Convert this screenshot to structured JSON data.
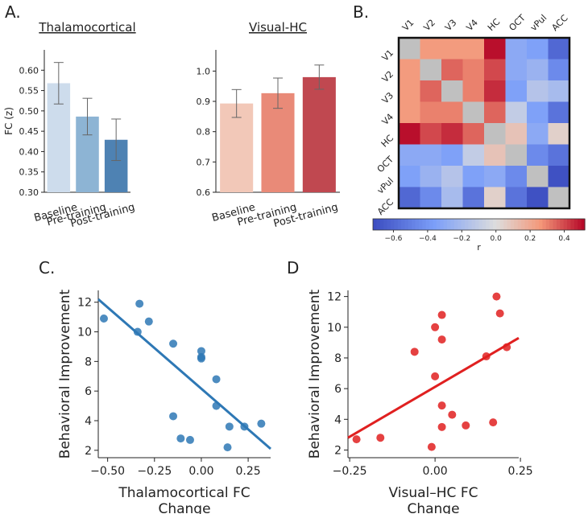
{
  "panel_labels": {
    "a": "A.",
    "b": "B.",
    "c": "C.",
    "d": "D"
  },
  "colorbar": {
    "label": "r",
    "ticks": [
      "−0.6",
      "−0.4",
      "−0.2",
      "0.0",
      "0.2",
      "0.4"
    ],
    "tick_values": [
      -0.6,
      -0.4,
      -0.2,
      0.0,
      0.2,
      0.4
    ],
    "vmin": -0.72,
    "vmax": 0.52
  },
  "chart_data": [
    {
      "id": "A1",
      "type": "bar",
      "title": "Thalamocortical",
      "ylabel": "FC (z)",
      "ylim": [
        0.3,
        0.65
      ],
      "yticks": [
        "0.30",
        "0.35",
        "0.40",
        "0.45",
        "0.50",
        "0.55",
        "0.60"
      ],
      "ytick_values": [
        0.3,
        0.35,
        0.4,
        0.45,
        0.5,
        0.55,
        0.6
      ],
      "categories": [
        "Baseline",
        "Pre-training",
        "Post-training"
      ],
      "values": [
        0.568,
        0.486,
        0.429
      ],
      "error": [
        0.051,
        0.045,
        0.051
      ],
      "colors": [
        "#cddcec",
        "#8db4d4",
        "#4e82b3"
      ]
    },
    {
      "id": "A2",
      "type": "bar",
      "title": "Visual-HC",
      "ylabel": "",
      "ylim": [
        0.6,
        1.07
      ],
      "yticks": [
        "0.6",
        "0.7",
        "0.8",
        "0.9",
        "1.0"
      ],
      "ytick_values": [
        0.6,
        0.7,
        0.8,
        0.9,
        1.0
      ],
      "categories": [
        "Baseline",
        "Pre-training",
        "Post-training"
      ],
      "values": [
        0.893,
        0.927,
        0.98
      ],
      "error": [
        0.046,
        0.05,
        0.04
      ],
      "colors": [
        "#f2c8b8",
        "#e98a78",
        "#c04850"
      ]
    },
    {
      "id": "B",
      "type": "heatmap",
      "labels": [
        "V1",
        "V2",
        "V3",
        "V4",
        "HC",
        "OCT",
        "vPul",
        "ACC"
      ],
      "values": [
        [
          0.0,
          0.25,
          0.25,
          0.25,
          0.5,
          -0.3,
          -0.35,
          -0.6
        ],
        [
          0.25,
          0.0,
          0.35,
          0.3,
          0.4,
          -0.3,
          -0.25,
          -0.45
        ],
        [
          0.25,
          0.35,
          0.0,
          0.3,
          0.45,
          -0.35,
          -0.15,
          -0.2
        ],
        [
          0.25,
          0.3,
          0.3,
          0.0,
          0.35,
          -0.1,
          -0.35,
          -0.55
        ],
        [
          0.5,
          0.4,
          0.45,
          0.35,
          0.0,
          0.1,
          -0.3,
          0.05
        ],
        [
          -0.3,
          -0.3,
          -0.35,
          -0.1,
          0.1,
          0.0,
          -0.45,
          -0.55
        ],
        [
          -0.35,
          -0.25,
          -0.15,
          -0.35,
          -0.3,
          -0.45,
          0.0,
          -0.7
        ],
        [
          -0.6,
          -0.45,
          -0.2,
          -0.55,
          0.05,
          -0.55,
          -0.7,
          0.0
        ]
      ],
      "diagonal": "grey"
    },
    {
      "id": "C",
      "type": "scatter",
      "color": "#2e78b5",
      "xlabel": "Thalamocortical FC\nChange",
      "ylabel": "Behavioral Improvement",
      "xlim": [
        -0.55,
        0.37
      ],
      "ylim": [
        1.5,
        12.8
      ],
      "xticks": [
        "−0.50",
        "−0.25",
        "0.00",
        "0.25"
      ],
      "xtick_values": [
        -0.5,
        -0.25,
        0,
        0.25
      ],
      "yticks": [
        "2",
        "4",
        "6",
        "8",
        "10",
        "12"
      ],
      "ytick_values": [
        2,
        4,
        6,
        8,
        10,
        12
      ],
      "points": [
        [
          -0.52,
          10.9
        ],
        [
          -0.33,
          11.9
        ],
        [
          -0.28,
          10.7
        ],
        [
          -0.34,
          10.0
        ],
        [
          -0.15,
          9.2
        ],
        [
          0.0,
          8.7
        ],
        [
          0.0,
          8.3
        ],
        [
          0.0,
          8.2
        ],
        [
          0.08,
          6.8
        ],
        [
          0.08,
          5.0
        ],
        [
          -0.15,
          4.3
        ],
        [
          -0.11,
          2.8
        ],
        [
          -0.06,
          2.7
        ],
        [
          0.15,
          3.6
        ],
        [
          0.23,
          3.6
        ],
        [
          0.32,
          3.8
        ],
        [
          0.14,
          2.2
        ]
      ],
      "fit": {
        "x": [
          -0.55,
          0.37
        ],
        "y": [
          12.2,
          2.1
        ]
      }
    },
    {
      "id": "D",
      "type": "scatter",
      "color": "#e02020",
      "xlabel": "Visual–HC FC\nChange",
      "ylabel": "Behavioral Improvement",
      "xlim": [
        -0.255,
        0.245
      ],
      "ylim": [
        1.5,
        12.4
      ],
      "xticks": [
        "−0.25",
        "0.00",
        "0.25"
      ],
      "xtick_values": [
        -0.25,
        0,
        0.25
      ],
      "yticks": [
        "2",
        "4",
        "6",
        "8",
        "10",
        "12"
      ],
      "ytick_values": [
        2,
        4,
        6,
        8,
        10,
        12
      ],
      "points": [
        [
          -0.23,
          2.7
        ],
        [
          -0.16,
          2.8
        ],
        [
          -0.06,
          8.4
        ],
        [
          -0.01,
          2.2
        ],
        [
          0.0,
          6.8
        ],
        [
          0.0,
          10.0
        ],
        [
          0.02,
          10.8
        ],
        [
          0.02,
          9.2
        ],
        [
          0.02,
          4.9
        ],
        [
          0.02,
          3.5
        ],
        [
          0.05,
          4.3
        ],
        [
          0.09,
          3.6
        ],
        [
          0.15,
          8.1
        ],
        [
          0.17,
          3.8
        ],
        [
          0.18,
          12.0
        ],
        [
          0.19,
          10.9
        ],
        [
          0.21,
          8.7
        ]
      ],
      "fit": {
        "x": [
          -0.255,
          0.245
        ],
        "y": [
          2.8,
          9.3
        ]
      }
    }
  ]
}
